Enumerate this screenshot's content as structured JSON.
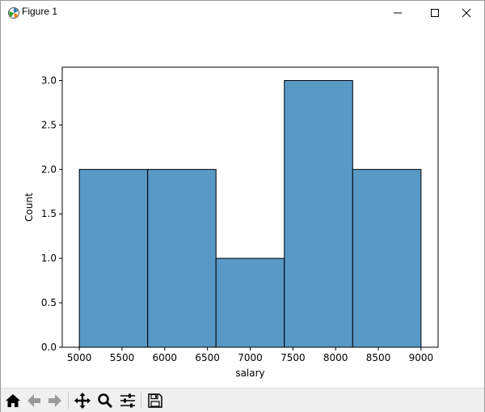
{
  "window": {
    "title": "Figure 1",
    "icons": {
      "app": "matplotlib-icon",
      "minimize": "minimize-icon",
      "maximize": "maximize-icon",
      "close": "close-icon"
    }
  },
  "toolbar": {
    "buttons": [
      {
        "name": "home-icon",
        "tooltip": ""
      },
      {
        "name": "back-arrow-icon",
        "tooltip": ""
      },
      {
        "name": "forward-arrow-icon",
        "tooltip": ""
      },
      {
        "name": "pan-move-icon",
        "tooltip": ""
      },
      {
        "name": "zoom-magnifier-icon",
        "tooltip": ""
      },
      {
        "name": "configure-subplots-icon",
        "tooltip": ""
      },
      {
        "name": "save-floppy-icon",
        "tooltip": ""
      }
    ]
  },
  "chart_data": {
    "type": "bar",
    "subtype": "histogram",
    "title": "",
    "xlabel": "salary",
    "ylabel": "Count",
    "bin_edges": [
      5000,
      5800,
      6600,
      7400,
      8200,
      9000
    ],
    "values": [
      2,
      2,
      1,
      3,
      2
    ],
    "xlim": [
      4800,
      9200
    ],
    "ylim": [
      0,
      3.15
    ],
    "xticks": [
      5000,
      5500,
      6000,
      6500,
      7000,
      7500,
      8000,
      8500,
      9000
    ],
    "xtick_labels": [
      "5000",
      "5500",
      "6000",
      "6500",
      "7000",
      "7500",
      "8000",
      "8500",
      "9000"
    ],
    "yticks": [
      0.0,
      0.5,
      1.0,
      1.5,
      2.0,
      2.5,
      3.0
    ],
    "ytick_labels": [
      "0.0",
      "0.5",
      "1.0",
      "1.5",
      "2.0",
      "2.5",
      "3.0"
    ],
    "bar_color": "#5899c6",
    "edge_color": "#000000",
    "grid": false,
    "legend": "none"
  }
}
